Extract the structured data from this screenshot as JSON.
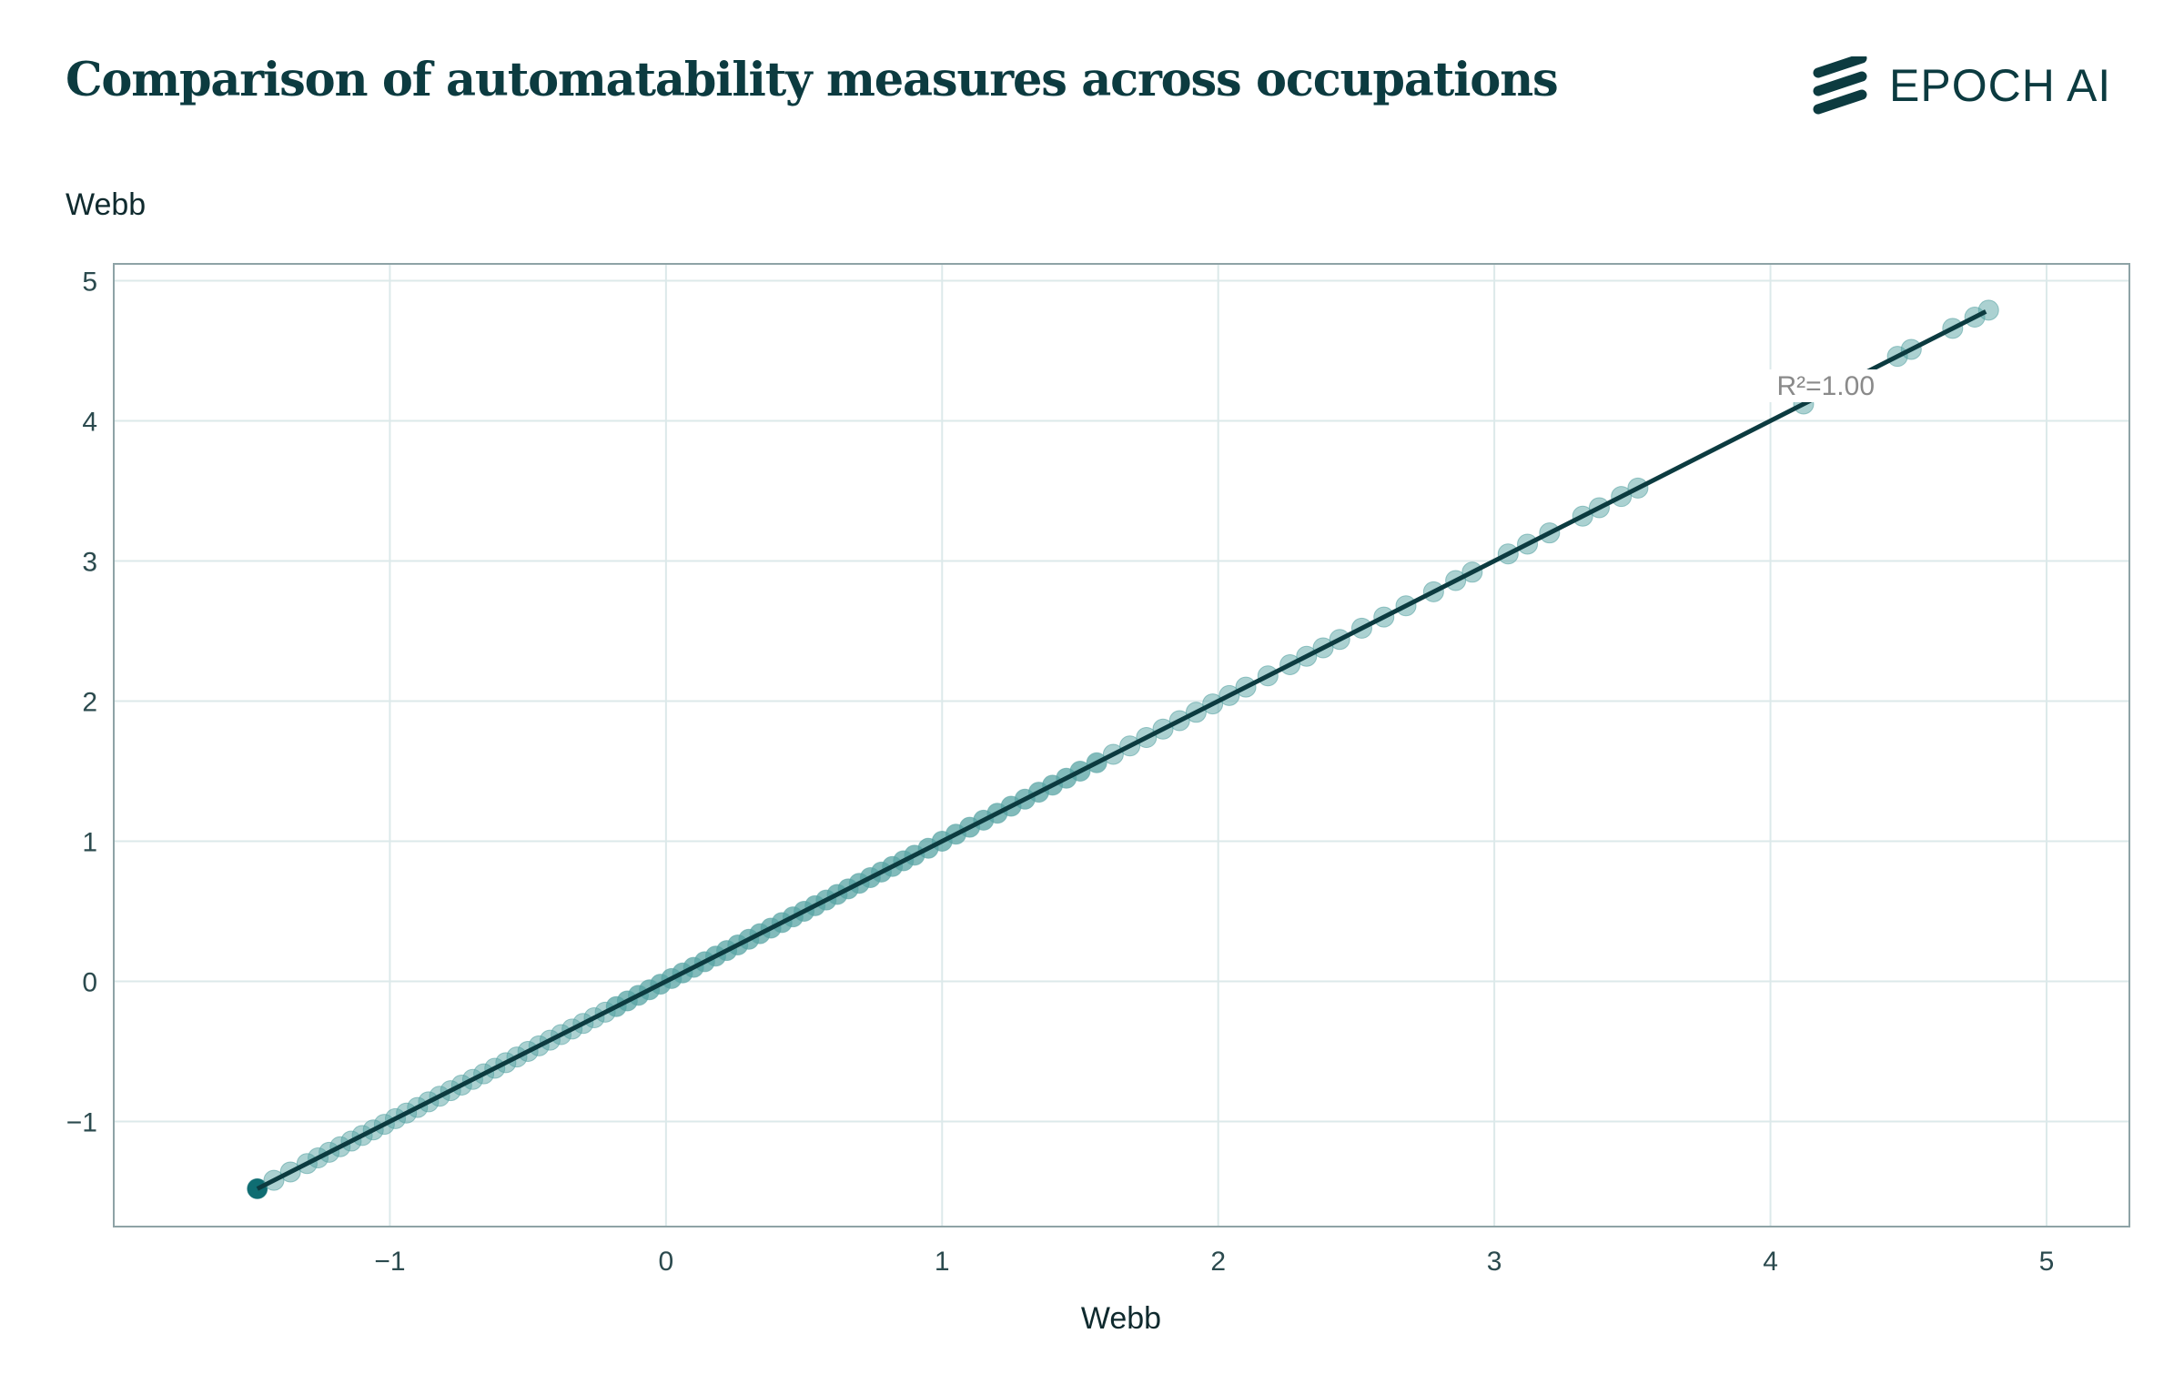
{
  "header": {
    "title": "Comparison of automatability measures across occupations",
    "logo_text": "EPOCH AI"
  },
  "colors": {
    "text": "#0c3b40",
    "grid": "#dce9ea",
    "frame": "#8ea3a6",
    "point_fill": "#58a4a4",
    "point_dark": "#0f6d72",
    "fit_line": "#0c3b40",
    "annotation": "#8a8a8a"
  },
  "chart_data": {
    "type": "scatter",
    "title": "Comparison of automatability measures across occupations",
    "xlabel": "Webb",
    "ylabel": "Webb",
    "xlim": [
      -2.0,
      5.3
    ],
    "ylim": [
      -1.75,
      5.12
    ],
    "x_ticks": [
      -1,
      0,
      1,
      2,
      3,
      4,
      5
    ],
    "y_ticks": [
      -1,
      0,
      1,
      2,
      3,
      4,
      5
    ],
    "x_tick_labels": [
      "−1",
      "0",
      "1",
      "2",
      "3",
      "4",
      "5"
    ],
    "y_tick_labels": [
      "−1",
      "0",
      "1",
      "2",
      "3",
      "4",
      "5"
    ],
    "grid": true,
    "fit_line": {
      "x": [
        -1.48,
        4.78
      ],
      "y": [
        -1.48,
        4.78
      ]
    },
    "annotation": {
      "text": "R²=1.00",
      "x": 4.2,
      "y": 4.25
    },
    "x": [
      -1.48,
      -1.42,
      -1.36,
      -1.3,
      -1.26,
      -1.22,
      -1.18,
      -1.14,
      -1.1,
      -1.06,
      -1.02,
      -0.98,
      -0.94,
      -0.9,
      -0.86,
      -0.82,
      -0.78,
      -0.74,
      -0.7,
      -0.66,
      -0.62,
      -0.58,
      -0.54,
      -0.5,
      -0.46,
      -0.42,
      -0.38,
      -0.34,
      -0.3,
      -0.26,
      -0.22,
      -0.18,
      -0.14,
      -0.1,
      -0.06,
      -0.02,
      0.02,
      0.06,
      0.1,
      0.14,
      0.18,
      0.22,
      0.26,
      0.3,
      0.34,
      0.38,
      0.42,
      0.46,
      0.5,
      0.54,
      0.58,
      0.62,
      0.66,
      0.7,
      0.74,
      0.78,
      0.82,
      0.86,
      0.9,
      0.95,
      1.0,
      1.05,
      1.1,
      1.15,
      1.2,
      1.25,
      1.3,
      1.35,
      1.4,
      1.45,
      1.5,
      1.56,
      1.62,
      1.68,
      1.74,
      1.8,
      1.86,
      1.92,
      1.98,
      2.04,
      2.1,
      2.18,
      2.26,
      2.32,
      2.38,
      2.44,
      2.52,
      2.6,
      2.68,
      2.78,
      2.86,
      2.92,
      3.05,
      3.12,
      3.2,
      3.32,
      3.38,
      3.46,
      3.52,
      4.12,
      4.46,
      4.51,
      4.66,
      4.74,
      4.79
    ],
    "y": [
      -1.48,
      -1.42,
      -1.36,
      -1.3,
      -1.26,
      -1.22,
      -1.18,
      -1.14,
      -1.1,
      -1.06,
      -1.02,
      -0.98,
      -0.94,
      -0.9,
      -0.86,
      -0.82,
      -0.78,
      -0.74,
      -0.7,
      -0.66,
      -0.62,
      -0.58,
      -0.54,
      -0.5,
      -0.46,
      -0.42,
      -0.38,
      -0.34,
      -0.3,
      -0.26,
      -0.22,
      -0.18,
      -0.14,
      -0.1,
      -0.06,
      -0.02,
      0.02,
      0.06,
      0.1,
      0.14,
      0.18,
      0.22,
      0.26,
      0.3,
      0.34,
      0.38,
      0.42,
      0.46,
      0.5,
      0.54,
      0.58,
      0.62,
      0.66,
      0.7,
      0.74,
      0.78,
      0.82,
      0.86,
      0.9,
      0.95,
      1.0,
      1.05,
      1.1,
      1.15,
      1.2,
      1.25,
      1.3,
      1.35,
      1.4,
      1.45,
      1.5,
      1.56,
      1.62,
      1.68,
      1.74,
      1.8,
      1.86,
      1.92,
      1.98,
      2.04,
      2.1,
      2.18,
      2.26,
      2.32,
      2.38,
      2.44,
      2.52,
      2.6,
      2.68,
      2.78,
      2.86,
      2.92,
      3.05,
      3.12,
      3.2,
      3.32,
      3.38,
      3.46,
      3.52,
      4.12,
      4.46,
      4.51,
      4.66,
      4.74,
      4.79
    ]
  }
}
